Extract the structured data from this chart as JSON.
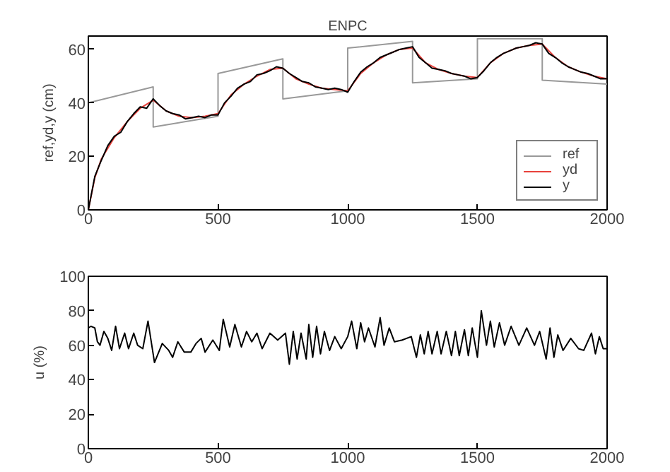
{
  "chart_data": [
    {
      "type": "line",
      "title": "ENPC",
      "ylabel": "ref,yd,y (cm)",
      "xlim": [
        0,
        2000
      ],
      "ylim": [
        0,
        65
      ],
      "xticks": [
        0,
        500,
        1000,
        1500,
        2000
      ],
      "yticks": [
        0,
        20,
        40,
        60
      ],
      "legend": "bottom right",
      "grid": false,
      "series": [
        {
          "name": "ref",
          "color": "#999999",
          "x": [
            0,
            250,
            250,
            500,
            500,
            750,
            750,
            1000,
            1000,
            1250,
            1250,
            1500,
            1500,
            1750,
            1750,
            2000
          ],
          "values": [
            40,
            46,
            31,
            35,
            51,
            56.5,
            41.5,
            44.5,
            60.5,
            63,
            47.5,
            49,
            64,
            64,
            48.5,
            47
          ]
        },
        {
          "name": "yd",
          "color": "#e8413c",
          "x": [
            0,
            25,
            50,
            100,
            150,
            200,
            250,
            300,
            350,
            400,
            450,
            500,
            550,
            600,
            650,
            700,
            750,
            800,
            850,
            900,
            950,
            1000,
            1050,
            1100,
            1150,
            1200,
            1250,
            1300,
            1350,
            1400,
            1450,
            1500,
            1550,
            1600,
            1650,
            1700,
            1750,
            1800,
            1850,
            1900,
            1950,
            2000
          ],
          "values": [
            0,
            12,
            19,
            27,
            33,
            38,
            41,
            37,
            35,
            34.5,
            35,
            36,
            43,
            47,
            50,
            52.5,
            53,
            49,
            47,
            45.5,
            45,
            44.5,
            51,
            55,
            58,
            60,
            60.5,
            55,
            52.5,
            51,
            50,
            49.5,
            55,
            58.5,
            60.5,
            61.5,
            62,
            57,
            53.5,
            51.5,
            50,
            49
          ]
        },
        {
          "name": "y",
          "color": "#000000",
          "x": [
            0,
            25,
            50,
            75,
            100,
            125,
            150,
            175,
            200,
            225,
            250,
            275,
            300,
            325,
            350,
            375,
            400,
            425,
            450,
            475,
            500,
            525,
            550,
            575,
            600,
            625,
            650,
            675,
            700,
            725,
            750,
            775,
            800,
            825,
            850,
            875,
            900,
            925,
            950,
            975,
            1000,
            1025,
            1050,
            1075,
            1100,
            1125,
            1150,
            1175,
            1200,
            1225,
            1250,
            1275,
            1300,
            1325,
            1350,
            1375,
            1400,
            1425,
            1450,
            1475,
            1500,
            1525,
            1550,
            1575,
            1600,
            1625,
            1650,
            1675,
            1700,
            1725,
            1750,
            1775,
            1800,
            1825,
            1850,
            1875,
            1900,
            1925,
            1950,
            1975,
            2000
          ],
          "values": [
            0,
            12.5,
            18.5,
            24,
            27.5,
            29,
            33,
            36,
            38.5,
            38,
            41.5,
            39,
            37,
            36,
            35.5,
            34,
            34.5,
            35,
            34.5,
            35.5,
            35.5,
            40,
            42.5,
            45.5,
            47,
            48,
            50.5,
            51,
            52,
            53.5,
            53,
            51,
            49.5,
            48,
            47.5,
            46,
            45.5,
            45,
            45.5,
            45,
            44,
            48,
            51.5,
            53.5,
            55,
            57,
            58,
            59,
            60,
            60.5,
            61,
            57,
            55,
            53,
            52.5,
            52,
            51,
            50.5,
            50,
            49,
            49.5,
            52,
            55,
            57,
            58.5,
            59.5,
            60.5,
            61,
            61.5,
            62.5,
            62,
            58.5,
            57,
            55,
            53.5,
            52.5,
            51.5,
            51,
            50,
            49,
            49
          ]
        }
      ]
    },
    {
      "type": "line",
      "ylabel": "u (%)",
      "xlim": [
        0,
        2000
      ],
      "ylim": [
        0,
        100
      ],
      "xticks": [
        0,
        500,
        1000,
        1500,
        2000
      ],
      "yticks": [
        0,
        20,
        40,
        60,
        80,
        100
      ],
      "grid": false,
      "series": [
        {
          "color": "#000000",
          "x": [
            0,
            10,
            25,
            35,
            45,
            60,
            75,
            90,
            105,
            120,
            140,
            155,
            175,
            190,
            210,
            230,
            255,
            285,
            310,
            325,
            345,
            370,
            395,
            415,
            435,
            450,
            480,
            505,
            520,
            545,
            565,
            590,
            610,
            630,
            650,
            670,
            700,
            730,
            760,
            775,
            790,
            805,
            820,
            840,
            850,
            865,
            880,
            895,
            910,
            930,
            950,
            975,
            1000,
            1015,
            1035,
            1050,
            1065,
            1080,
            1105,
            1125,
            1140,
            1160,
            1180,
            1210,
            1245,
            1265,
            1280,
            1295,
            1310,
            1325,
            1345,
            1360,
            1380,
            1400,
            1415,
            1430,
            1450,
            1465,
            1480,
            1500,
            1515,
            1535,
            1550,
            1565,
            1585,
            1605,
            1630,
            1660,
            1690,
            1720,
            1740,
            1765,
            1780,
            1795,
            1810,
            1830,
            1860,
            1890,
            1910,
            1940,
            1955,
            1970,
            1985,
            2000
          ],
          "values": [
            70,
            71,
            70,
            62,
            60,
            68,
            64,
            57,
            71,
            58,
            67,
            58,
            67,
            60,
            58,
            74,
            50,
            61,
            57,
            53,
            62,
            56,
            56,
            61,
            64,
            56,
            63,
            57,
            75,
            59,
            72,
            59,
            68,
            62,
            67,
            58,
            67,
            63,
            67,
            49,
            68,
            52,
            67,
            52,
            72,
            53,
            71,
            55,
            68,
            57,
            65,
            58,
            65,
            74,
            58,
            73,
            62,
            70,
            59,
            76,
            60,
            70,
            62,
            63,
            65,
            53,
            66,
            55,
            68,
            55,
            68,
            55,
            68,
            54,
            68,
            54,
            69,
            54,
            70,
            53,
            80,
            60,
            74,
            59,
            73,
            60,
            71,
            60,
            70,
            60,
            68,
            52,
            70,
            53,
            66,
            57,
            64,
            58,
            57,
            67,
            55,
            65,
            58,
            58
          ]
        }
      ]
    }
  ]
}
